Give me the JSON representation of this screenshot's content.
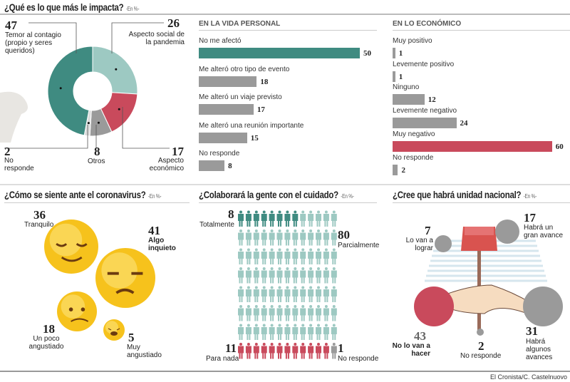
{
  "chart_data": [
    {
      "type": "pie",
      "title": "¿Qué es lo que más le impacta?",
      "unit": "-En %-",
      "slices": [
        {
          "label": "Aspecto social de la pandemia",
          "value": 26,
          "color": "#9dc9c2"
        },
        {
          "label": "Aspecto económico",
          "value": 17,
          "color": "#c94a5c"
        },
        {
          "label": "Otros",
          "value": 8,
          "color": "#9a9a9a"
        },
        {
          "label": "No responde",
          "value": 2,
          "color": "#dcdcdc"
        },
        {
          "label": "Temor al contagio (propio y seres queridos)",
          "value": 47,
          "color": "#3f8b81"
        }
      ]
    },
    {
      "type": "bar",
      "title": "EN LA VIDA PERSONAL",
      "categories": [
        "No me afectó",
        "Me alteró otro tipo de evento",
        "Me alteró un viaje previsto",
        "Me alteró una reunión importante",
        "No responde"
      ],
      "values": [
        50,
        18,
        17,
        15,
        8
      ],
      "highlight_color": "#3f8b81",
      "color": "#9a9a9a"
    },
    {
      "type": "bar",
      "title": "EN LO ECONÓMICO",
      "categories": [
        "Muy positivo",
        "Levemente positivo",
        "Ninguno",
        "Levemente negativo",
        "Muy negativo",
        "No responde"
      ],
      "values": [
        1,
        1,
        12,
        24,
        60,
        2
      ],
      "highlight_color": "#c94a5c",
      "color": "#9a9a9a"
    },
    {
      "type": "bubble",
      "title": "¿Cómo se siente ante el coronavirus?",
      "unit": "-En %-",
      "items": [
        {
          "label": "Tranquilo",
          "value": 36
        },
        {
          "label": "Algo inquieto",
          "value": 41
        },
        {
          "label": "Un poco angustiado",
          "value": 18
        },
        {
          "label": "Muy angustiado",
          "value": 5
        }
      ]
    },
    {
      "type": "pictogram",
      "title": "¿Colaborará la gente con el cuidado?",
      "unit": "-En %-",
      "items": [
        {
          "label": "Totalmente",
          "value": 8,
          "color": "#3f8b81"
        },
        {
          "label": "Parcialmente",
          "value": 80,
          "color": "#9dc9c2"
        },
        {
          "label": "Para nada",
          "value": 11,
          "color": "#c94a5c"
        },
        {
          "label": "No responde",
          "value": 1,
          "color": "#9a9a9a"
        }
      ]
    },
    {
      "type": "bubble",
      "title": "¿Cree que habrá unidad nacional?",
      "unit": "-En %-",
      "items": [
        {
          "label": "Lo van a lograr",
          "value": 7
        },
        {
          "label": "Habrá un gran avance",
          "value": 17
        },
        {
          "label": "No lo van a hacer",
          "value": 43
        },
        {
          "label": "Habrá algunos avances",
          "value": 31
        },
        {
          "label": "No responde",
          "value": 2
        }
      ]
    }
  ],
  "credit": "El Cronista/C. Castelnuovo"
}
